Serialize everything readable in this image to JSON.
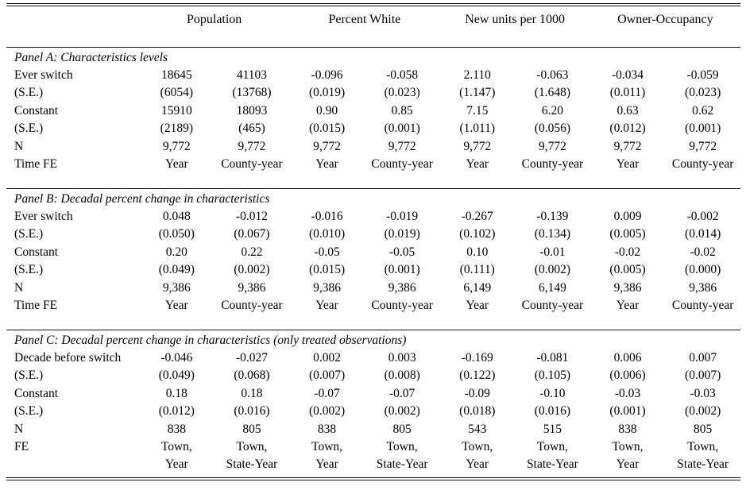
{
  "table": {
    "column_groups": [
      {
        "label": "Population"
      },
      {
        "label": "Percent White"
      },
      {
        "label": "New units per 1000"
      },
      {
        "label": "Owner-Occupancy"
      }
    ],
    "panels": [
      {
        "title": "Panel A: Characteristics levels",
        "rows": [
          {
            "label": "Ever switch",
            "cells": [
              "18645",
              "41103",
              "-0.096",
              "-0.058",
              "2.110",
              "-0.063",
              "-0.034",
              "-0.059"
            ]
          },
          {
            "label": "(S.E.)",
            "cells": [
              "(6054)",
              "(13768)",
              "(0.019)",
              "(0.023)",
              "(1.147)",
              "(1.648)",
              "(0.011)",
              "(0.023)"
            ]
          },
          {
            "label": "Constant",
            "cells": [
              "15910",
              "18093",
              "0.90",
              "0.85",
              "7.15",
              "6.20",
              "0.63",
              "0.62"
            ]
          },
          {
            "label": "(S.E.)",
            "cells": [
              "(2189)",
              "(465)",
              "(0.015)",
              "(0.001)",
              "(1.011)",
              "(0.056)",
              "(0.012)",
              "(0.001)"
            ]
          },
          {
            "label": "N",
            "cells": [
              "9,772",
              "9,772",
              "9,772",
              "9,772",
              "9,772",
              "9,772",
              "9,772",
              "9,772"
            ]
          },
          {
            "label": "Time FE",
            "cells": [
              "Year",
              "County-year",
              "Year",
              "County-year",
              "Year",
              "County-year",
              "Year",
              "County-year"
            ]
          }
        ]
      },
      {
        "title": "Panel B: Decadal percent change in characteristics",
        "rows": [
          {
            "label": "Ever switch",
            "cells": [
              "0.048",
              "-0.012",
              "-0.016",
              "-0.019",
              "-0.267",
              "-0.139",
              "0.009",
              "-0.002"
            ]
          },
          {
            "label": "(S.E.)",
            "cells": [
              "(0.050)",
              "(0.067)",
              "(0.010)",
              "(0.019)",
              "(0.102)",
              "(0.134)",
              "(0.005)",
              "(0.014)"
            ]
          },
          {
            "label": "Constant",
            "cells": [
              "0.20",
              "0.22",
              "-0.05",
              "-0.05",
              "0.10",
              "-0.01",
              "-0.02",
              "-0.02"
            ]
          },
          {
            "label": "(S.E.)",
            "cells": [
              "(0.049)",
              "(0.002)",
              "(0.015)",
              "(0.001)",
              "(0.111)",
              "(0.002)",
              "(0.005)",
              "(0.000)"
            ]
          },
          {
            "label": "N",
            "cells": [
              "9,386",
              "9,386",
              "9,386",
              "9,386",
              "6,149",
              "6,149",
              "9,386",
              "9,386"
            ]
          },
          {
            "label": "Time FE",
            "cells": [
              "Year",
              "County-year",
              "Year",
              "County-year",
              "Year",
              "County-year",
              "Year",
              "County-year"
            ]
          }
        ]
      },
      {
        "title": "Panel C: Decadal percent change in characteristics (only treated observations)",
        "rows": [
          {
            "label": "Decade before switch",
            "cells": [
              "-0.046",
              "-0.027",
              "0.002",
              "0.003",
              "-0.169",
              "-0.081",
              "0.006",
              "0.007"
            ]
          },
          {
            "label": "(S.E.)",
            "cells": [
              "(0.049)",
              "(0.068)",
              "(0.007)",
              "(0.008)",
              "(0.122)",
              "(0.105)",
              "(0.006)",
              "(0.007)"
            ]
          },
          {
            "label": "Constant",
            "cells": [
              "0.18",
              "0.18",
              "-0.07",
              "-0.07",
              "-0.09",
              "-0.10",
              "-0.03",
              "-0.03"
            ]
          },
          {
            "label": "(S.E.)",
            "cells": [
              "(0.012)",
              "(0.016)",
              "(0.002)",
              "(0.002)",
              "(0.018)",
              "(0.016)",
              "(0.001)",
              "(0.002)"
            ]
          },
          {
            "label": "N",
            "cells": [
              "838",
              "805",
              "838",
              "805",
              "543",
              "515",
              "838",
              "805"
            ]
          },
          {
            "label": "FE",
            "cells": [
              "Town,\nYear",
              "Town,\nState-Year",
              "Town,\nYear",
              "Town,\nState-Year",
              "Town,\nYear",
              "Town,\nState-Year",
              "Town,\nYear",
              "Town,\nState-Year"
            ]
          }
        ]
      }
    ]
  }
}
